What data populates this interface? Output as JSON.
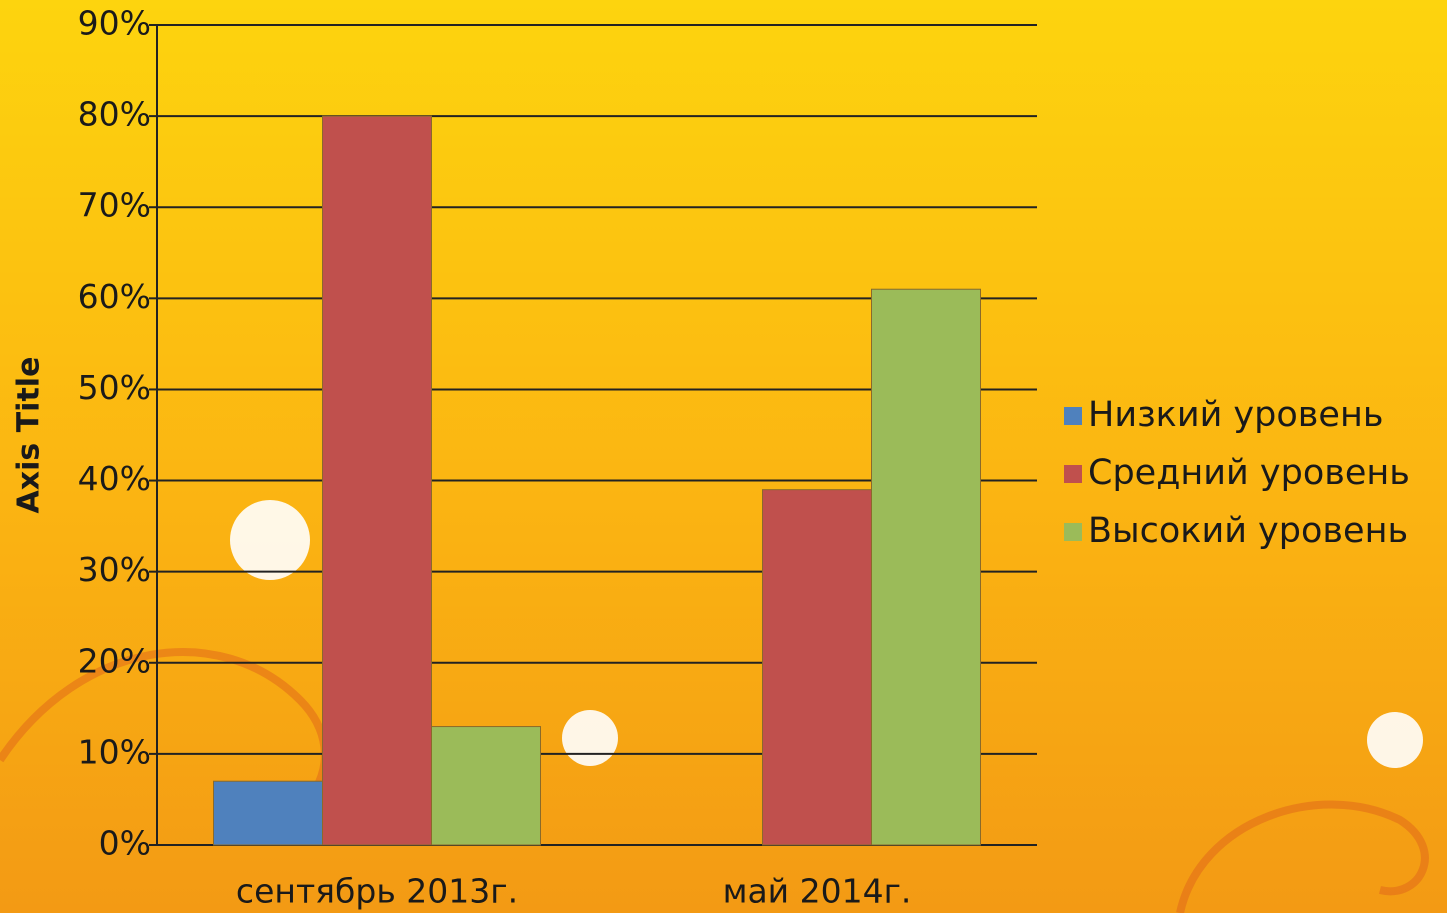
{
  "chart_data": {
    "type": "bar",
    "y_axis_title": "Axis Title",
    "categories": [
      "сентябрь 2013г.",
      "май 2014г."
    ],
    "series": [
      {
        "name": "Низкий уровень",
        "color": "#4f81bd",
        "values": [
          7,
          0
        ]
      },
      {
        "name": "Средний уровень",
        "color": "#c0504d",
        "values": [
          80,
          39
        ]
      },
      {
        "name": "Высокий уровень",
        "color": "#9bbb59",
        "values": [
          13,
          61
        ]
      }
    ],
    "ylim": [
      0,
      90
    ],
    "yticks": [
      {
        "value": 0,
        "label": "0%"
      },
      {
        "value": 10,
        "label": "10%"
      },
      {
        "value": 20,
        "label": "20%"
      },
      {
        "value": 30,
        "label": "30%"
      },
      {
        "value": 40,
        "label": "40%"
      },
      {
        "value": 50,
        "label": "50%"
      },
      {
        "value": 60,
        "label": "60%"
      },
      {
        "value": 70,
        "label": "70%"
      },
      {
        "value": 80,
        "label": "80%"
      },
      {
        "value": 90,
        "label": "90%"
      }
    ],
    "grid": true,
    "legend": "right"
  }
}
